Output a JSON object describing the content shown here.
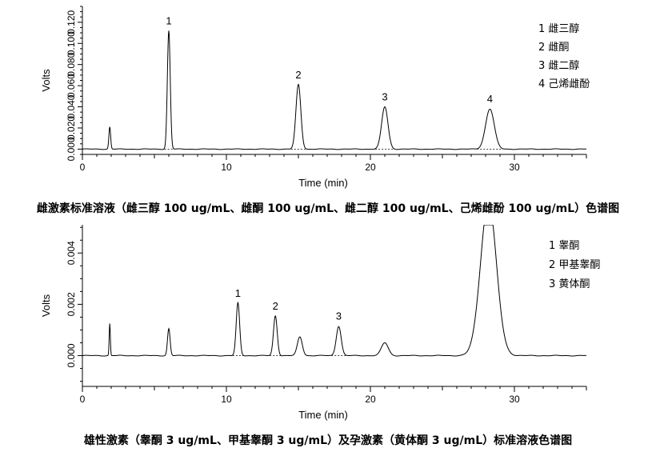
{
  "chart_data": [
    {
      "type": "line",
      "caption": "雌激素标准溶液（雌三醇 100 ug/mL、雌酮 100 ug/mL、雌二醇 100 ug/mL、己烯雌酚 100 ug/mL）色谱图",
      "xlabel": "Time (min)",
      "ylabel": "Volts",
      "xlim": [
        0,
        35
      ],
      "ylim": [
        -0.005,
        0.135
      ],
      "xticks": [
        0,
        10,
        20,
        30
      ],
      "yticks": [
        0.0,
        0.02,
        0.04,
        0.06,
        0.08,
        0.1,
        0.12
      ],
      "ytick_labels": [
        "0.000",
        "0.020",
        "0.040",
        "0.060",
        "0.080",
        "0.100",
        "0.120"
      ],
      "grid": false,
      "legend_position": "top-right",
      "legend": [
        "1  雌三醇",
        "2  雌酮",
        "3  雌二醇",
        "4  己烯雌酚"
      ],
      "baseline": 0.0,
      "peaks": [
        {
          "label": "",
          "rt": 1.9,
          "height": 0.021,
          "width": 0.06
        },
        {
          "label": "1",
          "rt": 6.0,
          "height": 0.112,
          "width": 0.1
        },
        {
          "label": "2",
          "rt": 15.0,
          "height": 0.061,
          "width": 0.17
        },
        {
          "label": "3",
          "rt": 21.0,
          "height": 0.04,
          "width": 0.22
        },
        {
          "label": "4",
          "rt": 28.3,
          "height": 0.038,
          "width": 0.3
        }
      ]
    },
    {
      "type": "line",
      "caption": "雄性激素（睾酮 3 ug/mL、甲基睾酮 3 ug/mL）及孕激素（黄体酮 3 ug/mL）标准溶液色谱图",
      "xlabel": "Time (min)",
      "ylabel": "Volts",
      "xlim": [
        0,
        35
      ],
      "ylim": [
        -0.0012,
        0.0051
      ],
      "xticks": [
        0,
        10,
        20,
        30
      ],
      "yticks": [
        0.0,
        0.002,
        0.004
      ],
      "ytick_labels": [
        "0.000",
        "0.002",
        "0.004"
      ],
      "grid": false,
      "legend_position": "top-right",
      "legend": [
        "1  睾酮",
        "2  甲基睾酮",
        "3  黄体酮"
      ],
      "baseline": 0.0,
      "peaks": [
        {
          "label": "",
          "rt": 1.9,
          "height": 0.00125,
          "width": 0.04
        },
        {
          "label": "",
          "rt": 6.0,
          "height": 0.00105,
          "width": 0.09
        },
        {
          "label": "1",
          "rt": 10.8,
          "height": 0.00205,
          "width": 0.12
        },
        {
          "label": "2",
          "rt": 13.4,
          "height": 0.00155,
          "width": 0.13
        },
        {
          "label": "",
          "rt": 15.1,
          "height": 0.00073,
          "width": 0.17
        },
        {
          "label": "3",
          "rt": 17.8,
          "height": 0.00115,
          "width": 0.17
        },
        {
          "label": "",
          "rt": 21.0,
          "height": 0.0005,
          "width": 0.24
        },
        {
          "label": "",
          "rt": 28.2,
          "height": 0.006,
          "width": 0.55
        }
      ]
    }
  ]
}
